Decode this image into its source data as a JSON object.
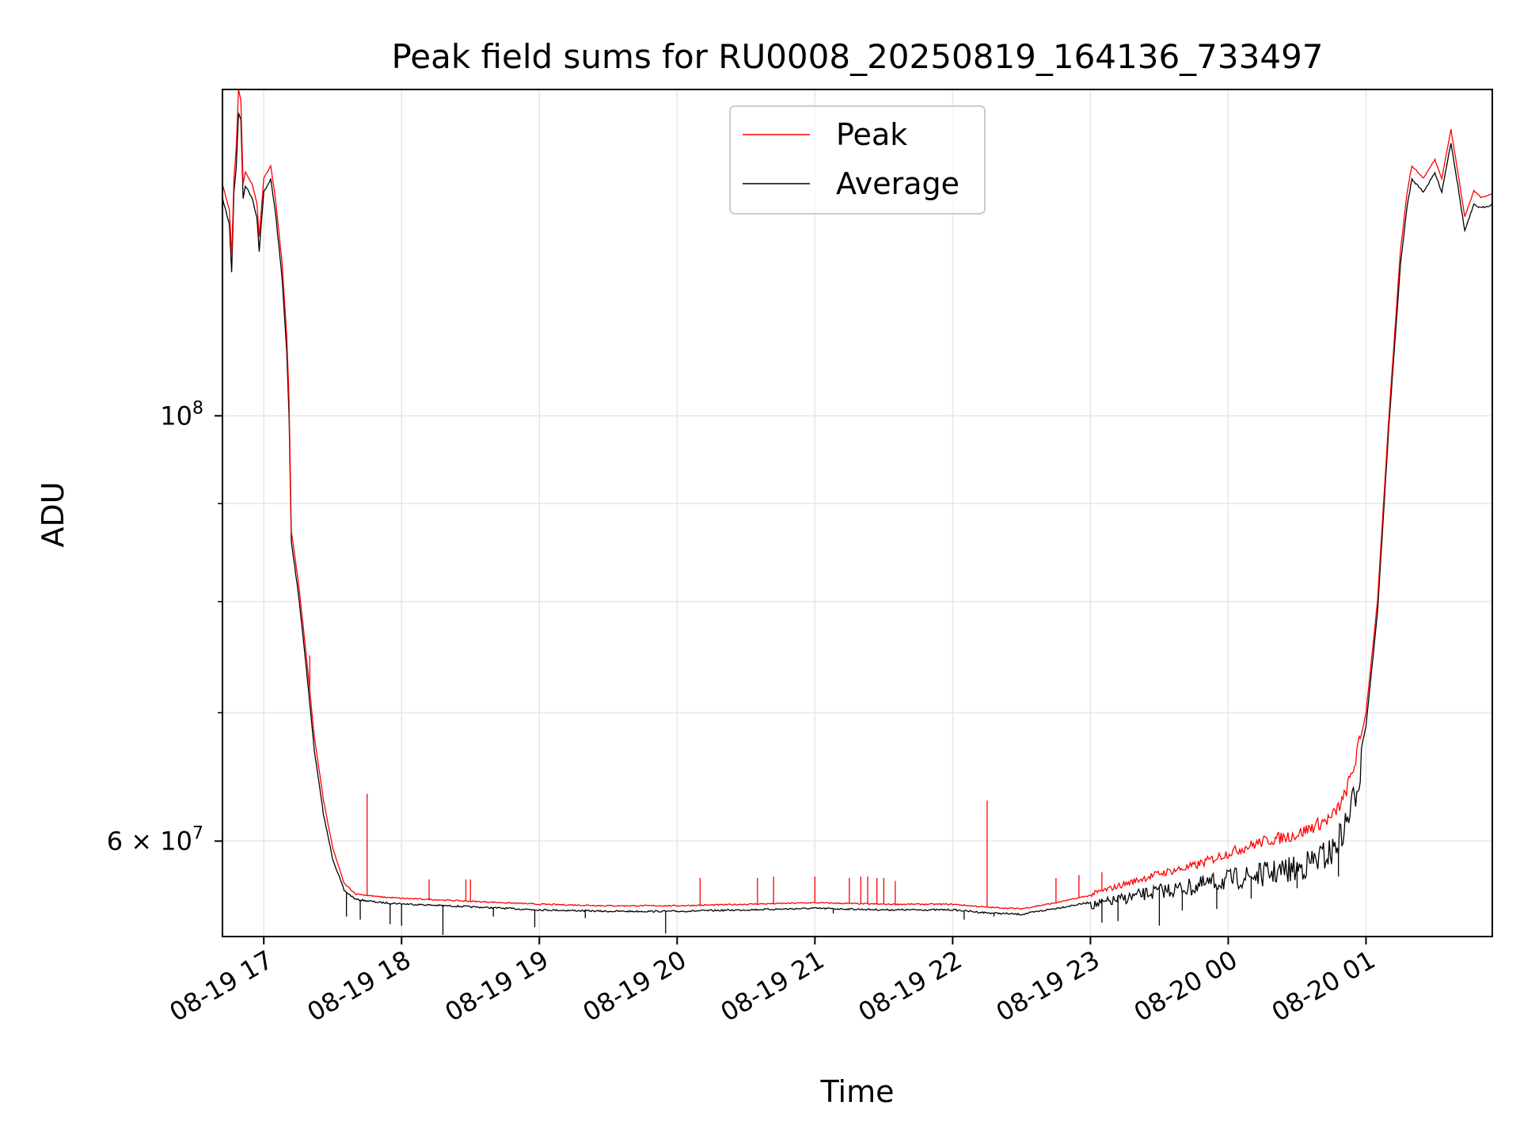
{
  "chart_data": {
    "type": "line",
    "title": "Peak field sums for RU0008_20250819_164136_733497",
    "xlabel": "Time",
    "ylabel": "ADU",
    "yscale": "log",
    "grid": true,
    "legend_position": "upper center",
    "x_range": [
      "2025-08-19 16:42",
      "2025-08-20 01:55"
    ],
    "y_range": [
      53500000,
      148000000
    ],
    "x_ticks": [
      {
        "time": "2025-08-19 17:00",
        "label": "08-19 17"
      },
      {
        "time": "2025-08-19 18:00",
        "label": "08-19 18"
      },
      {
        "time": "2025-08-19 19:00",
        "label": "08-19 19"
      },
      {
        "time": "2025-08-19 20:00",
        "label": "08-19 20"
      },
      {
        "time": "2025-08-19 21:00",
        "label": "08-19 21"
      },
      {
        "time": "2025-08-19 22:00",
        "label": "08-19 22"
      },
      {
        "time": "2025-08-19 23:00",
        "label": "08-19 23"
      },
      {
        "time": "2025-08-20 00:00",
        "label": "08-20 00"
      },
      {
        "time": "2025-08-20 01:00",
        "label": "08-20 01"
      }
    ],
    "y_major_ticks": [
      {
        "value": 60000000,
        "base": "6",
        "exp": "7"
      },
      {
        "value": 100000000,
        "base": "",
        "exp": "8"
      }
    ],
    "y_minor_ticks": [
      70000000,
      80000000,
      90000000
    ],
    "series": [
      {
        "name": "Peak",
        "color": "#ff0000",
        "points": [
          [
            "2025-08-19 16:42",
            132000000
          ],
          [
            "2025-08-19 16:45",
            128000000
          ],
          [
            "2025-08-19 16:46",
            121000000
          ],
          [
            "2025-08-19 16:47",
            133000000
          ],
          [
            "2025-08-19 16:48",
            138000000
          ],
          [
            "2025-08-19 16:49",
            148000000
          ],
          [
            "2025-08-19 16:50",
            146000000
          ],
          [
            "2025-08-19 16:51",
            132000000
          ],
          [
            "2025-08-19 16:52",
            134000000
          ],
          [
            "2025-08-19 16:55",
            132000000
          ],
          [
            "2025-08-19 16:57",
            129000000
          ],
          [
            "2025-08-19 16:58",
            124000000
          ],
          [
            "2025-08-19 17:00",
            133000000
          ],
          [
            "2025-08-19 17:03",
            135000000
          ],
          [
            "2025-08-19 17:05",
            130000000
          ],
          [
            "2025-08-19 17:08",
            120000000
          ],
          [
            "2025-08-19 17:10",
            110000000
          ],
          [
            "2025-08-19 17:11",
            102000000
          ],
          [
            "2025-08-19 17:12",
            87000000
          ],
          [
            "2025-08-19 17:15",
            82000000
          ],
          [
            "2025-08-19 17:18",
            76000000
          ],
          [
            "2025-08-19 17:22",
            68000000
          ],
          [
            "2025-08-19 17:26",
            63000000
          ],
          [
            "2025-08-19 17:30",
            59500000
          ],
          [
            "2025-08-19 17:35",
            57000000
          ],
          [
            "2025-08-19 17:40",
            56300000
          ],
          [
            "2025-08-19 17:50",
            56100000
          ],
          [
            "2025-08-19 18:00",
            56000000
          ],
          [
            "2025-08-19 18:30",
            55800000
          ],
          [
            "2025-08-19 19:00",
            55600000
          ],
          [
            "2025-08-19 19:30",
            55500000
          ],
          [
            "2025-08-19 20:00",
            55500000
          ],
          [
            "2025-08-19 20:30",
            55600000
          ],
          [
            "2025-08-19 21:00",
            55700000
          ],
          [
            "2025-08-19 21:30",
            55600000
          ],
          [
            "2025-08-19 22:00",
            55600000
          ],
          [
            "2025-08-19 22:15",
            55400000
          ],
          [
            "2025-08-19 22:30",
            55300000
          ],
          [
            "2025-08-19 22:45",
            55700000
          ],
          [
            "2025-08-19 23:00",
            56200000
          ],
          [
            "2025-08-19 23:15",
            56900000
          ],
          [
            "2025-08-19 23:30",
            57600000
          ],
          [
            "2025-08-19 23:45",
            58100000
          ],
          [
            "2025-08-20 00:00",
            59000000
          ],
          [
            "2025-08-20 00:15",
            59800000
          ],
          [
            "2025-08-20 00:30",
            60300000
          ],
          [
            "2025-08-20 00:45",
            61500000
          ],
          [
            "2025-08-20 00:50",
            62800000
          ],
          [
            "2025-08-20 00:55",
            65500000
          ],
          [
            "2025-08-20 01:00",
            70000000
          ],
          [
            "2025-08-20 01:05",
            80000000
          ],
          [
            "2025-08-20 01:10",
            100000000
          ],
          [
            "2025-08-20 01:15",
            122000000
          ],
          [
            "2025-08-20 01:18",
            131000000
          ],
          [
            "2025-08-20 01:20",
            135000000
          ],
          [
            "2025-08-20 01:25",
            133000000
          ],
          [
            "2025-08-20 01:30",
            136000000
          ],
          [
            "2025-08-20 01:33",
            133000000
          ],
          [
            "2025-08-20 01:37",
            141000000
          ],
          [
            "2025-08-20 01:40",
            134000000
          ],
          [
            "2025-08-20 01:43",
            127000000
          ],
          [
            "2025-08-20 01:47",
            131000000
          ],
          [
            "2025-08-20 01:50",
            130000000
          ],
          [
            "2025-08-20 01:55",
            130500000
          ]
        ],
        "spikes": [
          [
            "2025-08-19 17:20",
            75000000
          ],
          [
            "2025-08-19 17:45",
            63500000
          ],
          [
            "2025-08-19 18:12",
            57300000
          ],
          [
            "2025-08-19 18:28",
            57300000
          ],
          [
            "2025-08-19 18:30",
            57300000
          ],
          [
            "2025-08-19 20:10",
            57400000
          ],
          [
            "2025-08-19 20:35",
            57400000
          ],
          [
            "2025-08-19 20:42",
            57500000
          ],
          [
            "2025-08-19 21:00",
            57500000
          ],
          [
            "2025-08-19 21:15",
            57400000
          ],
          [
            "2025-08-19 21:20",
            57500000
          ],
          [
            "2025-08-19 21:23",
            57500000
          ],
          [
            "2025-08-19 21:27",
            57400000
          ],
          [
            "2025-08-19 21:30",
            57400000
          ],
          [
            "2025-08-19 21:35",
            57200000
          ],
          [
            "2025-08-19 22:15",
            63000000
          ],
          [
            "2025-08-19 22:45",
            57400000
          ],
          [
            "2025-08-19 22:55",
            57600000
          ],
          [
            "2025-08-19 23:05",
            57800000
          ]
        ]
      },
      {
        "name": "Average",
        "color": "#000000",
        "points": [
          [
            "2025-08-19 16:42",
            130000000
          ],
          [
            "2025-08-19 16:45",
            126000000
          ],
          [
            "2025-08-19 16:46",
            119000000
          ],
          [
            "2025-08-19 16:47",
            131000000
          ],
          [
            "2025-08-19 16:48",
            135000000
          ],
          [
            "2025-08-19 16:49",
            144000000
          ],
          [
            "2025-08-19 16:50",
            143000000
          ],
          [
            "2025-08-19 16:51",
            130000000
          ],
          [
            "2025-08-19 16:52",
            132000000
          ],
          [
            "2025-08-19 16:55",
            130000000
          ],
          [
            "2025-08-19 16:57",
            127000000
          ],
          [
            "2025-08-19 16:58",
            122000000
          ],
          [
            "2025-08-19 17:00",
            131000000
          ],
          [
            "2025-08-19 17:03",
            133000000
          ],
          [
            "2025-08-19 17:05",
            128000000
          ],
          [
            "2025-08-19 17:08",
            118000000
          ],
          [
            "2025-08-19 17:10",
            108000000
          ],
          [
            "2025-08-19 17:11",
            100000000
          ],
          [
            "2025-08-19 17:12",
            86000000
          ],
          [
            "2025-08-19 17:15",
            81000000
          ],
          [
            "2025-08-19 17:18",
            75000000
          ],
          [
            "2025-08-19 17:22",
            67000000
          ],
          [
            "2025-08-19 17:26",
            62000000
          ],
          [
            "2025-08-19 17:30",
            58800000
          ],
          [
            "2025-08-19 17:35",
            56600000
          ],
          [
            "2025-08-19 17:40",
            56000000
          ],
          [
            "2025-08-19 17:50",
            55800000
          ],
          [
            "2025-08-19 18:00",
            55700000
          ],
          [
            "2025-08-19 18:30",
            55500000
          ],
          [
            "2025-08-19 19:00",
            55300000
          ],
          [
            "2025-08-19 19:30",
            55200000
          ],
          [
            "2025-08-19 20:00",
            55200000
          ],
          [
            "2025-08-19 20:30",
            55300000
          ],
          [
            "2025-08-19 21:00",
            55400000
          ],
          [
            "2025-08-19 21:30",
            55300000
          ],
          [
            "2025-08-19 22:00",
            55300000
          ],
          [
            "2025-08-19 22:15",
            55100000
          ],
          [
            "2025-08-19 22:30",
            55000000
          ],
          [
            "2025-08-19 22:45",
            55400000
          ],
          [
            "2025-08-19 23:00",
            55800000
          ],
          [
            "2025-08-19 23:15",
            56400000
          ],
          [
            "2025-08-19 23:30",
            57000000
          ],
          [
            "2025-08-19 23:45",
            57400000
          ],
          [
            "2025-08-20 00:00",
            58000000
          ],
          [
            "2025-08-20 00:15",
            58500000
          ],
          [
            "2025-08-20 00:30",
            59000000
          ],
          [
            "2025-08-20 00:45",
            60300000
          ],
          [
            "2025-08-20 00:50",
            61800000
          ],
          [
            "2025-08-20 00:55",
            64500000
          ],
          [
            "2025-08-20 01:00",
            69000000
          ],
          [
            "2025-08-20 01:05",
            79000000
          ],
          [
            "2025-08-20 01:10",
            99000000
          ],
          [
            "2025-08-20 01:15",
            120000000
          ],
          [
            "2025-08-20 01:18",
            129000000
          ],
          [
            "2025-08-20 01:20",
            133000000
          ],
          [
            "2025-08-20 01:25",
            131000000
          ],
          [
            "2025-08-20 01:30",
            134000000
          ],
          [
            "2025-08-20 01:33",
            131000000
          ],
          [
            "2025-08-20 01:37",
            139000000
          ],
          [
            "2025-08-20 01:40",
            132000000
          ],
          [
            "2025-08-20 01:43",
            125000000
          ],
          [
            "2025-08-20 01:47",
            129000000
          ],
          [
            "2025-08-20 01:50",
            128500000
          ],
          [
            "2025-08-20 01:55",
            129000000
          ]
        ],
        "dips": [
          [
            "2025-08-19 17:36",
            54800000
          ],
          [
            "2025-08-19 17:42",
            54600000
          ],
          [
            "2025-08-19 17:55",
            54300000
          ],
          [
            "2025-08-19 18:00",
            54200000
          ],
          [
            "2025-08-19 18:18",
            53600000
          ],
          [
            "2025-08-19 18:40",
            54800000
          ],
          [
            "2025-08-19 18:58",
            54100000
          ],
          [
            "2025-08-19 19:20",
            54700000
          ],
          [
            "2025-08-19 19:55",
            53700000
          ],
          [
            "2025-08-19 21:08",
            55000000
          ],
          [
            "2025-08-19 22:05",
            54600000
          ],
          [
            "2025-08-19 22:18",
            54800000
          ],
          [
            "2025-08-19 23:05",
            54400000
          ],
          [
            "2025-08-19 23:12",
            54500000
          ],
          [
            "2025-08-19 23:30",
            54200000
          ],
          [
            "2025-08-19 23:40",
            55200000
          ],
          [
            "2025-08-19 23:55",
            55300000
          ],
          [
            "2025-08-20 00:10",
            56000000
          ],
          [
            "2025-08-20 00:30",
            56700000
          ],
          [
            "2025-08-20 00:48",
            57500000
          ]
        ]
      }
    ]
  }
}
